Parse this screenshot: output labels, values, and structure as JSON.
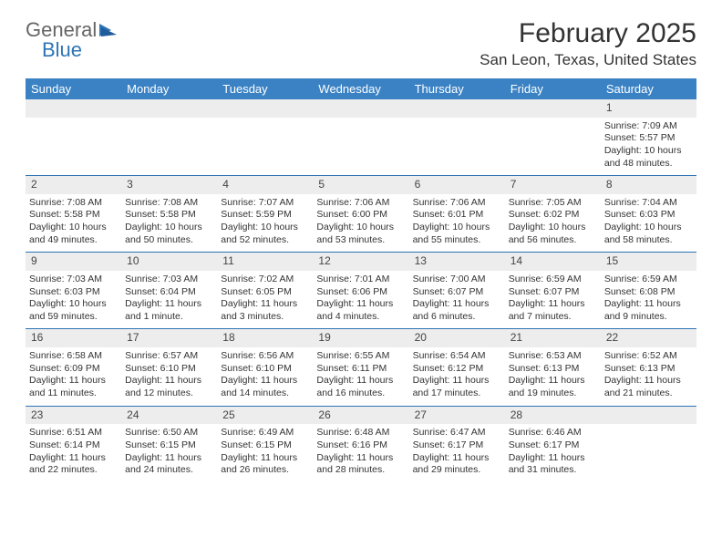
{
  "logo": {
    "general": "General",
    "blue": "Blue"
  },
  "title": "February 2025",
  "location": "San Leon, Texas, United States",
  "colors": {
    "header_bg": "#3a82c4",
    "header_text": "#ffffff",
    "daynum_bg": "#ededed",
    "border": "#2e74b5",
    "text": "#333333",
    "logo_blue": "#2e74b5",
    "logo_gray": "#666666"
  },
  "day_labels": [
    "Sunday",
    "Monday",
    "Tuesday",
    "Wednesday",
    "Thursday",
    "Friday",
    "Saturday"
  ],
  "weeks": [
    [
      {
        "n": "",
        "sr": "",
        "ss": "",
        "dl": ""
      },
      {
        "n": "",
        "sr": "",
        "ss": "",
        "dl": ""
      },
      {
        "n": "",
        "sr": "",
        "ss": "",
        "dl": ""
      },
      {
        "n": "",
        "sr": "",
        "ss": "",
        "dl": ""
      },
      {
        "n": "",
        "sr": "",
        "ss": "",
        "dl": ""
      },
      {
        "n": "",
        "sr": "",
        "ss": "",
        "dl": ""
      },
      {
        "n": "1",
        "sr": "Sunrise: 7:09 AM",
        "ss": "Sunset: 5:57 PM",
        "dl": "Daylight: 10 hours and 48 minutes."
      }
    ],
    [
      {
        "n": "2",
        "sr": "Sunrise: 7:08 AM",
        "ss": "Sunset: 5:58 PM",
        "dl": "Daylight: 10 hours and 49 minutes."
      },
      {
        "n": "3",
        "sr": "Sunrise: 7:08 AM",
        "ss": "Sunset: 5:58 PM",
        "dl": "Daylight: 10 hours and 50 minutes."
      },
      {
        "n": "4",
        "sr": "Sunrise: 7:07 AM",
        "ss": "Sunset: 5:59 PM",
        "dl": "Daylight: 10 hours and 52 minutes."
      },
      {
        "n": "5",
        "sr": "Sunrise: 7:06 AM",
        "ss": "Sunset: 6:00 PM",
        "dl": "Daylight: 10 hours and 53 minutes."
      },
      {
        "n": "6",
        "sr": "Sunrise: 7:06 AM",
        "ss": "Sunset: 6:01 PM",
        "dl": "Daylight: 10 hours and 55 minutes."
      },
      {
        "n": "7",
        "sr": "Sunrise: 7:05 AM",
        "ss": "Sunset: 6:02 PM",
        "dl": "Daylight: 10 hours and 56 minutes."
      },
      {
        "n": "8",
        "sr": "Sunrise: 7:04 AM",
        "ss": "Sunset: 6:03 PM",
        "dl": "Daylight: 10 hours and 58 minutes."
      }
    ],
    [
      {
        "n": "9",
        "sr": "Sunrise: 7:03 AM",
        "ss": "Sunset: 6:03 PM",
        "dl": "Daylight: 10 hours and 59 minutes."
      },
      {
        "n": "10",
        "sr": "Sunrise: 7:03 AM",
        "ss": "Sunset: 6:04 PM",
        "dl": "Daylight: 11 hours and 1 minute."
      },
      {
        "n": "11",
        "sr": "Sunrise: 7:02 AM",
        "ss": "Sunset: 6:05 PM",
        "dl": "Daylight: 11 hours and 3 minutes."
      },
      {
        "n": "12",
        "sr": "Sunrise: 7:01 AM",
        "ss": "Sunset: 6:06 PM",
        "dl": "Daylight: 11 hours and 4 minutes."
      },
      {
        "n": "13",
        "sr": "Sunrise: 7:00 AM",
        "ss": "Sunset: 6:07 PM",
        "dl": "Daylight: 11 hours and 6 minutes."
      },
      {
        "n": "14",
        "sr": "Sunrise: 6:59 AM",
        "ss": "Sunset: 6:07 PM",
        "dl": "Daylight: 11 hours and 7 minutes."
      },
      {
        "n": "15",
        "sr": "Sunrise: 6:59 AM",
        "ss": "Sunset: 6:08 PM",
        "dl": "Daylight: 11 hours and 9 minutes."
      }
    ],
    [
      {
        "n": "16",
        "sr": "Sunrise: 6:58 AM",
        "ss": "Sunset: 6:09 PM",
        "dl": "Daylight: 11 hours and 11 minutes."
      },
      {
        "n": "17",
        "sr": "Sunrise: 6:57 AM",
        "ss": "Sunset: 6:10 PM",
        "dl": "Daylight: 11 hours and 12 minutes."
      },
      {
        "n": "18",
        "sr": "Sunrise: 6:56 AM",
        "ss": "Sunset: 6:10 PM",
        "dl": "Daylight: 11 hours and 14 minutes."
      },
      {
        "n": "19",
        "sr": "Sunrise: 6:55 AM",
        "ss": "Sunset: 6:11 PM",
        "dl": "Daylight: 11 hours and 16 minutes."
      },
      {
        "n": "20",
        "sr": "Sunrise: 6:54 AM",
        "ss": "Sunset: 6:12 PM",
        "dl": "Daylight: 11 hours and 17 minutes."
      },
      {
        "n": "21",
        "sr": "Sunrise: 6:53 AM",
        "ss": "Sunset: 6:13 PM",
        "dl": "Daylight: 11 hours and 19 minutes."
      },
      {
        "n": "22",
        "sr": "Sunrise: 6:52 AM",
        "ss": "Sunset: 6:13 PM",
        "dl": "Daylight: 11 hours and 21 minutes."
      }
    ],
    [
      {
        "n": "23",
        "sr": "Sunrise: 6:51 AM",
        "ss": "Sunset: 6:14 PM",
        "dl": "Daylight: 11 hours and 22 minutes."
      },
      {
        "n": "24",
        "sr": "Sunrise: 6:50 AM",
        "ss": "Sunset: 6:15 PM",
        "dl": "Daylight: 11 hours and 24 minutes."
      },
      {
        "n": "25",
        "sr": "Sunrise: 6:49 AM",
        "ss": "Sunset: 6:15 PM",
        "dl": "Daylight: 11 hours and 26 minutes."
      },
      {
        "n": "26",
        "sr": "Sunrise: 6:48 AM",
        "ss": "Sunset: 6:16 PM",
        "dl": "Daylight: 11 hours and 28 minutes."
      },
      {
        "n": "27",
        "sr": "Sunrise: 6:47 AM",
        "ss": "Sunset: 6:17 PM",
        "dl": "Daylight: 11 hours and 29 minutes."
      },
      {
        "n": "28",
        "sr": "Sunrise: 6:46 AM",
        "ss": "Sunset: 6:17 PM",
        "dl": "Daylight: 11 hours and 31 minutes."
      },
      {
        "n": "",
        "sr": "",
        "ss": "",
        "dl": ""
      }
    ]
  ]
}
